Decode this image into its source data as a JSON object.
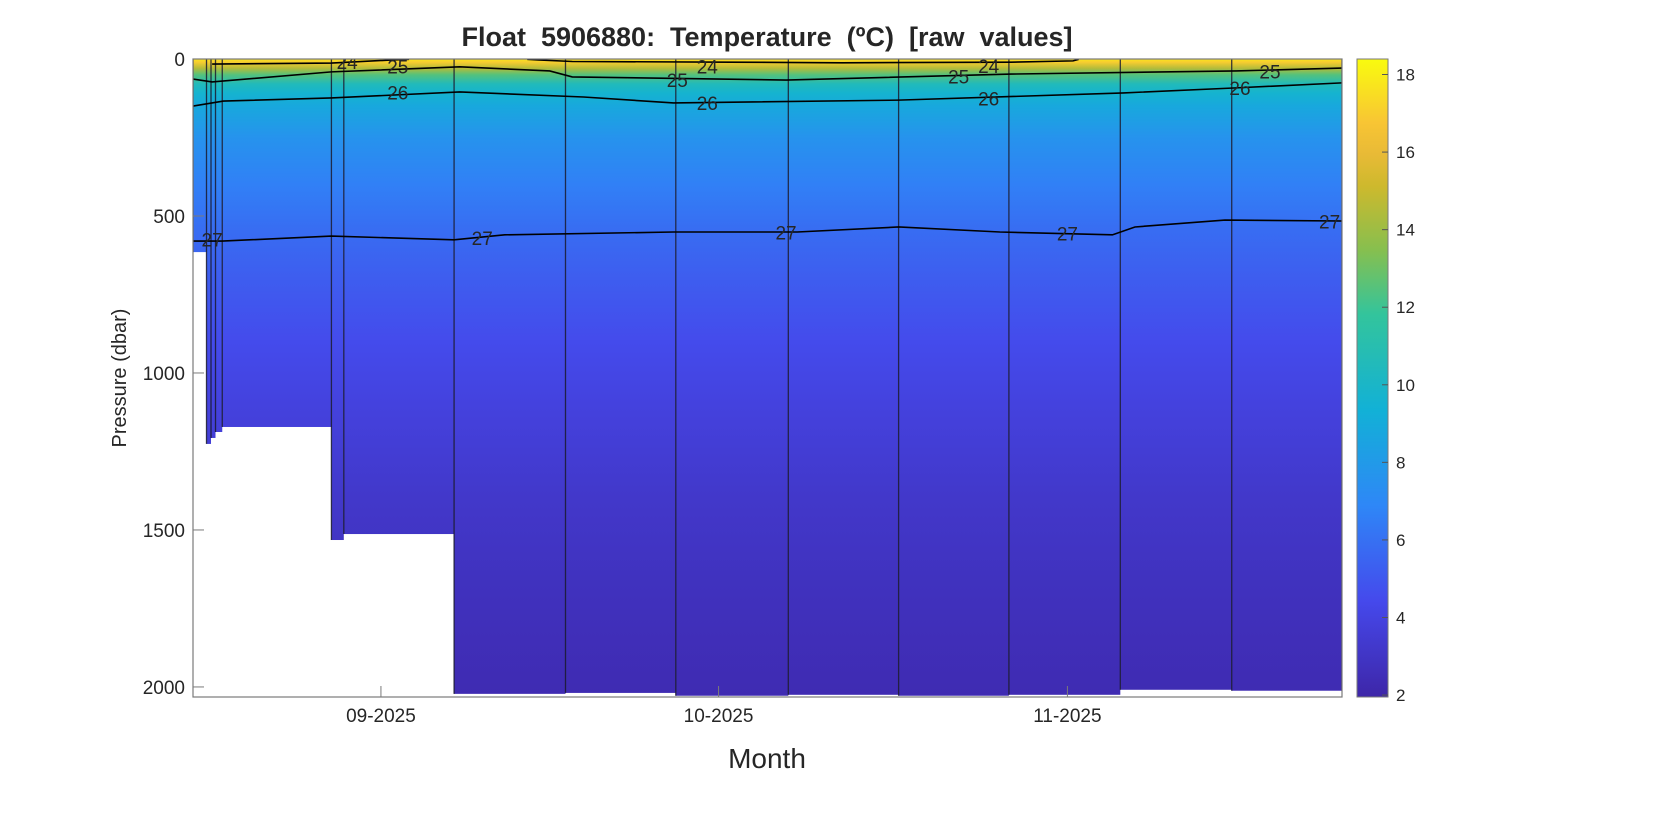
{
  "chart_data": {
    "type": "heatmap",
    "title": "Float  5906880:  Temperature  (ºC)  [raw  values]",
    "xlabel": "Month",
    "ylabel": "Pressure (dbar)",
    "xlim_day_of_year": [
      227.3,
      329.4
    ],
    "ylim": [
      0,
      2032
    ],
    "y_reversed": true,
    "yticks": [
      0,
      500,
      1000,
      1500,
      2000
    ],
    "ytick_labels": [
      "0",
      "500",
      "1000",
      "1500",
      "2000"
    ],
    "xticks_day_of_year": [
      244,
      274,
      305
    ],
    "xtick_labels": [
      "09-2025",
      "10-2025",
      "11-2025"
    ],
    "colorbar": {
      "clim": [
        1.95,
        18.4
      ],
      "ticks": [
        2,
        4,
        6,
        8,
        10,
        12,
        14,
        16,
        18
      ],
      "tick_labels": [
        "2",
        "4",
        "6",
        "8",
        "10",
        "12",
        "14",
        "16",
        "18"
      ]
    },
    "temperature_profile": {
      "pressure": [
        0,
        10,
        30,
        50,
        80,
        110,
        150,
        250,
        400,
        550,
        700,
        900,
        1100,
        1400,
        1700,
        2032
      ],
      "temperature": [
        17.8,
        17.0,
        14.5,
        12.5,
        10.5,
        9.6,
        8.8,
        7.6,
        6.6,
        5.8,
        5.2,
        4.5,
        3.9,
        3.2,
        2.7,
        2.3
      ]
    },
    "profiles": [
      {
        "day": 227.3,
        "max_pressure": 615
      },
      {
        "day": 228.5,
        "max_pressure": 1226
      },
      {
        "day": 228.9,
        "max_pressure": 1207
      },
      {
        "day": 229.3,
        "max_pressure": 1188
      },
      {
        "day": 229.9,
        "max_pressure": 1172
      },
      {
        "day": 239.6,
        "max_pressure": 1532
      },
      {
        "day": 240.7,
        "max_pressure": 1513
      },
      {
        "day": 250.5,
        "max_pressure": 2022
      },
      {
        "day": 260.4,
        "max_pressure": 2019
      },
      {
        "day": 270.2,
        "max_pressure": 2028
      },
      {
        "day": 280.2,
        "max_pressure": 2025
      },
      {
        "day": 290.0,
        "max_pressure": 2028
      },
      {
        "day": 299.8,
        "max_pressure": 2025
      },
      {
        "day": 309.7,
        "max_pressure": 2009
      },
      {
        "day": 319.6,
        "max_pressure": 2012
      },
      {
        "day": 329.4,
        "max_pressure": 2012
      }
    ],
    "contours": [
      {
        "level": "24",
        "segments": [
          [
            [
              229.0,
              16
            ],
            [
              239.6,
              13
            ],
            [
              245,
              3
            ],
            [
              246.5,
              1
            ]
          ],
          [
            [
              257,
              1
            ],
            [
              258,
              3
            ],
            [
              261,
              8
            ],
            [
              275,
              10
            ],
            [
              285,
              12
            ],
            [
              300,
              10
            ],
            [
              305.5,
              6
            ],
            [
              306,
              1
            ]
          ]
        ],
        "labels": [
          [
            241.0,
            10
          ],
          [
            273.0,
            24
          ],
          [
            298.0,
            22
          ]
        ]
      },
      {
        "level": "25",
        "segments": [
          [
            [
              227.3,
              64
            ],
            [
              229,
              73
            ],
            [
              239.6,
              41
            ],
            [
              251,
              25
            ],
            [
              259,
              38
            ],
            [
              261,
              57
            ],
            [
              280,
              67
            ],
            [
              300,
              48
            ],
            [
              320,
              38
            ],
            [
              329.4,
              29
            ]
          ]
        ],
        "labels": [
          [
            245.5,
            24
          ],
          [
            273.0,
            67
          ],
          [
            298.0,
            55
          ],
          [
            323.0,
            40
          ]
        ]
      },
      {
        "level": "26",
        "segments": [
          [
            [
              227.3,
              150
            ],
            [
              230,
              134
            ],
            [
              239.6,
              124
            ],
            [
              251,
              105
            ],
            [
              262,
              121
            ],
            [
              270,
              140
            ],
            [
              290,
              131
            ],
            [
              310,
              108
            ],
            [
              320,
              92
            ],
            [
              329.4,
              76
            ]
          ]
        ],
        "labels": [
          [
            245.5,
            106
          ],
          [
            273.0,
            140
          ],
          [
            298.0,
            126
          ],
          [
            323.0,
            93
          ]
        ]
      },
      {
        "level": "27",
        "segments": [
          [
            [
              227.3,
              580
            ],
            [
              229.9,
              580
            ],
            [
              239.6,
              564
            ],
            [
              250.5,
              576
            ],
            [
              255,
              560
            ],
            [
              270,
              551
            ],
            [
              281,
              551
            ],
            [
              290,
              535
            ],
            [
              299,
              551
            ],
            [
              309,
              560
            ],
            [
              311,
              535
            ],
            [
              319,
              513
            ],
            [
              329.4,
              516
            ]
          ]
        ],
        "labels": [
          [
            229.0,
            575
          ],
          [
            253.0,
            570
          ],
          [
            280.0,
            552
          ],
          [
            305.0,
            555
          ],
          [
            328.3,
            517
          ]
        ]
      }
    ]
  }
}
